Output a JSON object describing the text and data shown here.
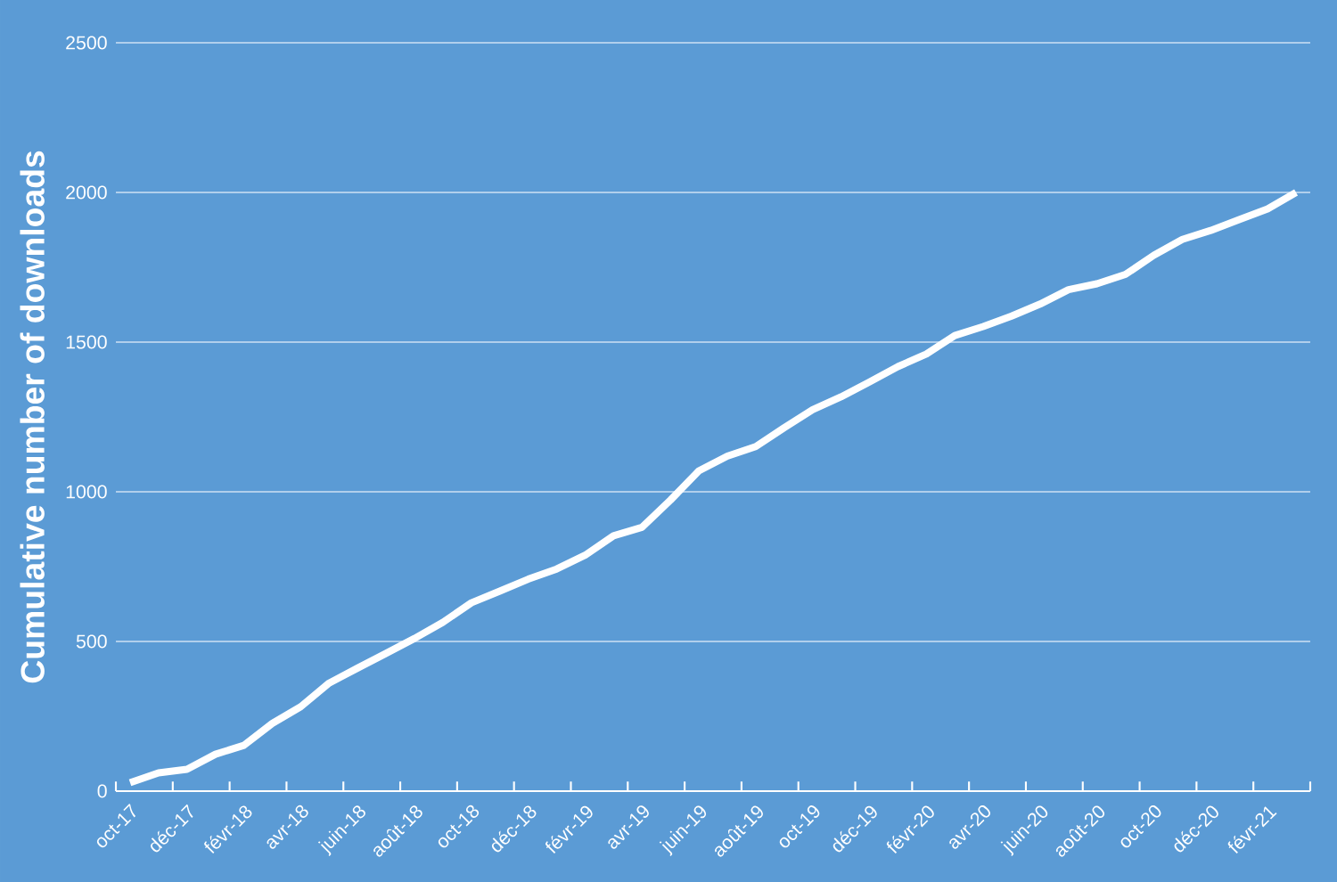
{
  "chart_data": {
    "type": "line",
    "ylabel": "Cumulative number of downloads",
    "categories": [
      "oct-17",
      null,
      "déc-17",
      null,
      "févr-18",
      null,
      "avr-18",
      null,
      "juin-18",
      null,
      "août-18",
      null,
      "oct-18",
      null,
      "déc-18",
      null,
      "févr-19",
      null,
      "avr-19",
      null,
      "juin-19",
      null,
      "août-19",
      null,
      "oct-19",
      null,
      "déc-19",
      null,
      "févr-20",
      null,
      "avr-20",
      null,
      "juin-20",
      null,
      "août-20",
      null,
      "oct-20",
      null,
      "déc-20",
      null,
      "févr-21",
      null
    ],
    "series": [
      {
        "color": "#ffffff",
        "values": [
          28,
          61,
          73,
          123,
          153,
          226,
          282,
          361,
          411,
          460,
          510,
          564,
          629,
          668,
          708,
          742,
          788,
          853,
          881,
          972,
          1070,
          1119,
          1151,
          1214,
          1274,
          1317,
          1367,
          1418,
          1460,
          1522,
          1552,
          1587,
          1627,
          1675,
          1695,
          1726,
          1790,
          1843,
          1873,
          1909,
          1945,
          2000
        ]
      }
    ],
    "ylim": [
      0,
      2500
    ],
    "yticks": [
      0,
      500,
      1000,
      1500,
      2000,
      2500
    ],
    "grid": "y",
    "legend": false,
    "marker": "none",
    "line_style": "solid"
  }
}
